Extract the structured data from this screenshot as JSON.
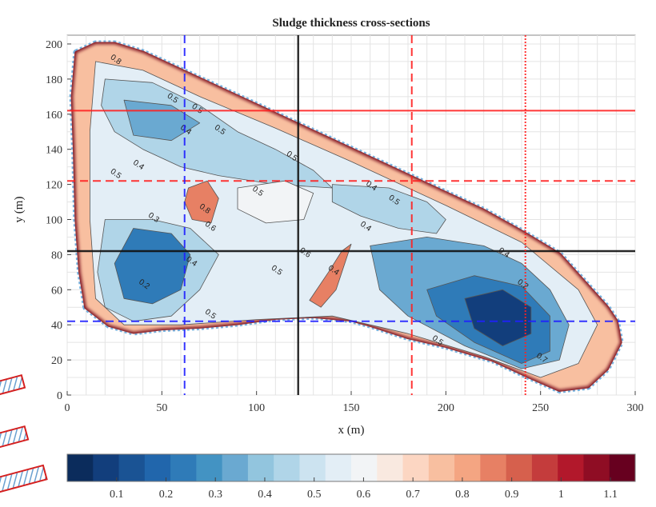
{
  "chart_data": {
    "type": "heatmap",
    "title": "Sludge thickness cross-sections",
    "xlabel": "x (m)",
    "ylabel": "y (m)",
    "xlim": [
      0,
      300
    ],
    "ylim": [
      0,
      205
    ],
    "x_ticks": [
      0,
      50,
      100,
      150,
      200,
      250,
      300
    ],
    "y_ticks": [
      0,
      20,
      40,
      60,
      80,
      100,
      120,
      140,
      160,
      180,
      200
    ],
    "grid": true,
    "colorbar": {
      "ticks": [
        0.1,
        0.2,
        0.3,
        0.4,
        0.5,
        0.6,
        0.7,
        0.8,
        0.9,
        1,
        1.1
      ],
      "tick_labels": [
        "0.1",
        "0.2",
        "0.3",
        "0.4",
        "0.5",
        "0.6",
        "0.7",
        "0.8",
        "0.9",
        "1",
        "1.1"
      ],
      "min": 0.0,
      "max": 1.15,
      "colors": [
        "#0b2c5c",
        "#123e7c",
        "#1a5394",
        "#2166ac",
        "#2f7bb8",
        "#4393c3",
        "#6aa9d1",
        "#92c5de",
        "#b0d5e8",
        "#cce3f0",
        "#e3eef6",
        "#f2f4f6",
        "#f9e9e0",
        "#fcd6c2",
        "#f8bfa0",
        "#f4a582",
        "#e78064",
        "#d6604d",
        "#c43c3c",
        "#b2182b",
        "#8f0d24",
        "#67001f"
      ]
    },
    "boundary": [
      [
        5,
        195
      ],
      [
        15,
        200
      ],
      [
        25,
        200
      ],
      [
        40,
        195
      ],
      [
        60,
        185
      ],
      [
        80,
        175
      ],
      [
        100,
        165
      ],
      [
        120,
        155
      ],
      [
        140,
        145
      ],
      [
        160,
        135
      ],
      [
        180,
        125
      ],
      [
        200,
        115
      ],
      [
        220,
        105
      ],
      [
        240,
        93
      ],
      [
        260,
        80
      ],
      [
        275,
        62
      ],
      [
        285,
        50
      ],
      [
        290,
        42
      ],
      [
        292,
        30
      ],
      [
        285,
        15
      ],
      [
        275,
        5
      ],
      [
        260,
        3
      ],
      [
        245,
        10
      ],
      [
        225,
        20
      ],
      [
        200,
        28
      ],
      [
        180,
        33
      ],
      [
        160,
        40
      ],
      [
        150,
        43
      ],
      [
        130,
        45
      ],
      [
        110,
        44
      ],
      [
        90,
        41
      ],
      [
        70,
        39
      ],
      [
        50,
        38
      ],
      [
        35,
        36
      ],
      [
        22,
        40
      ],
      [
        10,
        50
      ],
      [
        7,
        70
      ],
      [
        5,
        100
      ],
      [
        4,
        140
      ],
      [
        3,
        170
      ]
    ],
    "zones": [
      {
        "value": 0.55,
        "polygon": [
          [
            15,
            190
          ],
          [
            40,
            185
          ],
          [
            70,
            170
          ],
          [
            110,
            152
          ],
          [
            150,
            133
          ],
          [
            200,
            108
          ],
          [
            240,
            87
          ],
          [
            270,
            60
          ],
          [
            280,
            40
          ],
          [
            270,
            18
          ],
          [
            250,
            10
          ],
          [
            220,
            22
          ],
          [
            180,
            35
          ],
          [
            140,
            45
          ],
          [
            100,
            43
          ],
          [
            60,
            40
          ],
          [
            30,
            40
          ],
          [
            15,
            55
          ],
          [
            12,
            100
          ],
          [
            12,
            150
          ]
        ]
      },
      {
        "value": 0.42,
        "polygon": [
          [
            20,
            180
          ],
          [
            45,
            178
          ],
          [
            70,
            165
          ],
          [
            90,
            150
          ],
          [
            110,
            140
          ],
          [
            130,
            128
          ],
          [
            140,
            118
          ],
          [
            110,
            120
          ],
          [
            80,
            125
          ],
          [
            60,
            130
          ],
          [
            40,
            140
          ],
          [
            25,
            150
          ],
          [
            18,
            165
          ]
        ]
      },
      {
        "value": 0.32,
        "polygon": [
          [
            30,
            168
          ],
          [
            55,
            165
          ],
          [
            70,
            155
          ],
          [
            55,
            145
          ],
          [
            35,
            148
          ]
        ]
      },
      {
        "value": 0.42,
        "polygon": [
          [
            140,
            120
          ],
          [
            170,
            118
          ],
          [
            190,
            110
          ],
          [
            200,
            100
          ],
          [
            195,
            92
          ],
          [
            175,
            95
          ],
          [
            155,
            102
          ],
          [
            140,
            110
          ]
        ]
      },
      {
        "value": 0.42,
        "polygon": [
          [
            20,
            100
          ],
          [
            45,
            100
          ],
          [
            65,
            95
          ],
          [
            80,
            80
          ],
          [
            70,
            60
          ],
          [
            55,
            45
          ],
          [
            35,
            42
          ],
          [
            20,
            50
          ],
          [
            16,
            70
          ]
        ]
      },
      {
        "value": 0.22,
        "polygon": [
          [
            35,
            95
          ],
          [
            55,
            92
          ],
          [
            65,
            80
          ],
          [
            60,
            60
          ],
          [
            45,
            52
          ],
          [
            30,
            55
          ],
          [
            25,
            75
          ]
        ]
      },
      {
        "value": 0.36,
        "polygon": [
          [
            160,
            85
          ],
          [
            190,
            90
          ],
          [
            220,
            85
          ],
          [
            240,
            75
          ],
          [
            255,
            60
          ],
          [
            265,
            40
          ],
          [
            260,
            20
          ],
          [
            240,
            15
          ],
          [
            210,
            28
          ],
          [
            180,
            45
          ],
          [
            165,
            60
          ]
        ]
      },
      {
        "value": 0.22,
        "polygon": [
          [
            190,
            60
          ],
          [
            215,
            68
          ],
          [
            240,
            62
          ],
          [
            255,
            45
          ],
          [
            255,
            25
          ],
          [
            240,
            18
          ],
          [
            215,
            30
          ],
          [
            195,
            45
          ]
        ]
      },
      {
        "value": 0.1,
        "polygon": [
          [
            210,
            55
          ],
          [
            230,
            60
          ],
          [
            245,
            50
          ],
          [
            245,
            35
          ],
          [
            230,
            28
          ],
          [
            215,
            38
          ]
        ]
      },
      {
        "value": 0.62,
        "polygon": [
          [
            90,
            118
          ],
          [
            115,
            122
          ],
          [
            130,
            115
          ],
          [
            125,
            100
          ],
          [
            105,
            98
          ],
          [
            90,
            106
          ]
        ]
      },
      {
        "value": 0.85,
        "polygon": [
          [
            64,
            118
          ],
          [
            74,
            122
          ],
          [
            80,
            112
          ],
          [
            76,
            98
          ],
          [
            66,
            100
          ],
          [
            62,
            110
          ]
        ]
      },
      {
        "value": 0.85,
        "polygon": [
          [
            145,
            82
          ],
          [
            150,
            86
          ],
          [
            142,
            60
          ],
          [
            134,
            50
          ],
          [
            128,
            54
          ],
          [
            138,
            70
          ]
        ]
      }
    ],
    "contour_labels": [
      {
        "x": 25,
        "y": 190,
        "text": "0.8"
      },
      {
        "x": 55,
        "y": 168,
        "text": "0.5"
      },
      {
        "x": 62,
        "y": 150,
        "text": "0.4"
      },
      {
        "x": 68,
        "y": 162,
        "text": "0.5"
      },
      {
        "x": 80,
        "y": 150,
        "text": "0.5"
      },
      {
        "x": 118,
        "y": 135,
        "text": "0.5"
      },
      {
        "x": 25,
        "y": 125,
        "text": "0.5"
      },
      {
        "x": 37,
        "y": 130,
        "text": "0.4"
      },
      {
        "x": 100,
        "y": 115,
        "text": "0.5"
      },
      {
        "x": 45,
        "y": 100,
        "text": "0.3"
      },
      {
        "x": 72,
        "y": 105,
        "text": "0.8"
      },
      {
        "x": 75,
        "y": 95,
        "text": "0.6"
      },
      {
        "x": 160,
        "y": 118,
        "text": "0.4"
      },
      {
        "x": 172,
        "y": 110,
        "text": "0.5"
      },
      {
        "x": 157,
        "y": 95,
        "text": "0.4"
      },
      {
        "x": 125,
        "y": 80,
        "text": "0.6"
      },
      {
        "x": 140,
        "y": 70,
        "text": "0.4"
      },
      {
        "x": 65,
        "y": 75,
        "text": "0.4"
      },
      {
        "x": 110,
        "y": 70,
        "text": "0.5"
      },
      {
        "x": 40,
        "y": 62,
        "text": "0.2"
      },
      {
        "x": 75,
        "y": 45,
        "text": "0.5"
      },
      {
        "x": 230,
        "y": 80,
        "text": "0.4"
      },
      {
        "x": 240,
        "y": 62,
        "text": "0.2"
      },
      {
        "x": 250,
        "y": 20,
        "text": "0.7"
      },
      {
        "x": 195,
        "y": 30,
        "text": "0.5"
      }
    ],
    "cross_sections": [
      {
        "orientation": "horizontal",
        "value": 162,
        "color": "#ff2020",
        "style": "solid"
      },
      {
        "orientation": "horizontal",
        "value": 122,
        "color": "#ff2020",
        "style": "dashed"
      },
      {
        "orientation": "horizontal",
        "value": 82,
        "color": "#111111",
        "style": "solid"
      },
      {
        "orientation": "horizontal",
        "value": 42,
        "color": "#2020ff",
        "style": "dashed"
      },
      {
        "orientation": "vertical",
        "value": 62,
        "color": "#2020ff",
        "style": "dashed"
      },
      {
        "orientation": "vertical",
        "value": 122,
        "color": "#111111",
        "style": "solid"
      },
      {
        "orientation": "vertical",
        "value": 182,
        "color": "#ff2020",
        "style": "dashed"
      },
      {
        "orientation": "vertical",
        "value": 242,
        "color": "#ff2020",
        "style": "dotted"
      }
    ]
  }
}
